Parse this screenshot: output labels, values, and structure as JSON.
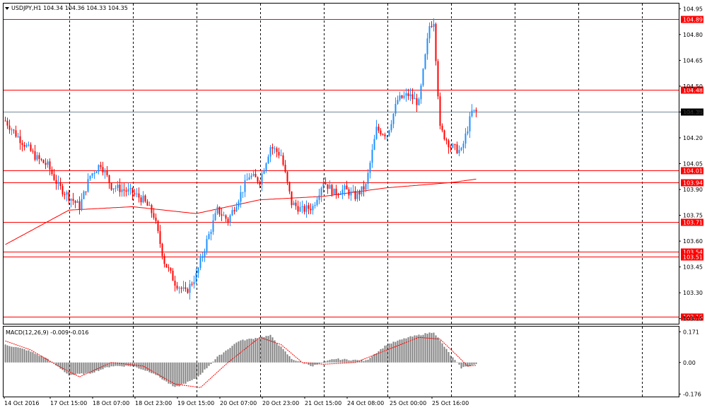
{
  "symbol_header": "USDJPY,H1  104.34 104.36 104.33 104.35",
  "macd_header": "MACD(12,26,9) -0.009 -0.016",
  "colors": {
    "up": "#1e90ff",
    "down": "#ff0000",
    "ma": "#ff0000",
    "level": "#ff0000",
    "current": "#778899",
    "signal": "#ff0000",
    "histogram": "#808080",
    "grid": "#000000"
  },
  "price_axis": {
    "ylim": [
      103.12,
      104.98
    ],
    "ticks": [
      "104.95",
      "104.80",
      "104.65",
      "104.50",
      "104.35",
      "104.20",
      "104.05",
      "103.90",
      "103.75",
      "103.60",
      "103.45",
      "103.30",
      "103.15"
    ]
  },
  "macd_axis": {
    "ylim": [
      -0.19,
      0.2
    ],
    "ticks": [
      "0.171",
      "0.00",
      "-0.176"
    ]
  },
  "time_labels": [
    "14 Oct 2016",
    "17 Oct 15:00",
    "18 Oct 07:00",
    "18 Oct 23:00",
    "19 Oct 15:00",
    "20 Oct 07:00",
    "20 Oct 23:00",
    "21 Oct 15:00",
    "24 Oct 08:00",
    "25 Oct 00:00",
    "25 Oct 16:00"
  ],
  "level_labels": [
    "104.89",
    "104.48",
    "104.01",
    "103.94",
    "103.71",
    "103.54",
    "103.51",
    "103.16"
  ],
  "current_price_label": "104.35",
  "chart_data": [
    {
      "type": "candlestick",
      "title": "USDJPY,H1",
      "x_labels": [
        "14 Oct 2016",
        "17 Oct 15:00",
        "18 Oct 07:00",
        "18 Oct 23:00",
        "19 Oct 15:00",
        "20 Oct 07:00",
        "20 Oct 23:00",
        "21 Oct 15:00",
        "24 Oct 08:00",
        "25 Oct 00:00",
        "25 Oct 16:00"
      ],
      "horizontal_levels": [
        104.89,
        104.48,
        104.01,
        103.94,
        103.71,
        103.54,
        103.51,
        103.16
      ],
      "current_price": 104.35,
      "ohlc_anchors": [
        [
          0,
          104.3
        ],
        [
          5,
          104.22
        ],
        [
          10,
          104.15
        ],
        [
          15,
          104.08
        ],
        [
          20,
          104.04
        ],
        [
          25,
          103.92
        ],
        [
          30,
          103.86
        ],
        [
          35,
          103.8
        ],
        [
          40,
          103.98
        ],
        [
          45,
          104.05
        ],
        [
          50,
          103.92
        ],
        [
          55,
          103.9
        ],
        [
          60,
          103.88
        ],
        [
          65,
          103.84
        ],
        [
          70,
          103.75
        ],
        [
          75,
          103.48
        ],
        [
          80,
          103.36
        ],
        [
          85,
          103.3
        ],
        [
          90,
          103.4
        ],
        [
          95,
          103.6
        ],
        [
          100,
          103.78
        ],
        [
          105,
          103.72
        ],
        [
          110,
          103.85
        ],
        [
          115,
          103.98
        ],
        [
          120,
          103.95
        ],
        [
          125,
          104.15
        ],
        [
          130,
          104.1
        ],
        [
          135,
          103.82
        ],
        [
          140,
          103.78
        ],
        [
          145,
          103.8
        ],
        [
          150,
          103.95
        ],
        [
          155,
          103.88
        ],
        [
          160,
          103.9
        ],
        [
          165,
          103.86
        ],
        [
          170,
          103.92
        ],
        [
          175,
          104.25
        ],
        [
          180,
          104.22
        ],
        [
          185,
          104.42
        ],
        [
          190,
          104.45
        ],
        [
          195,
          104.4
        ],
        [
          200,
          104.85
        ],
        [
          202,
          104.88
        ],
        [
          205,
          104.25
        ],
        [
          210,
          104.15
        ],
        [
          215,
          104.12
        ],
        [
          220,
          104.35
        ],
        [
          222,
          104.35
        ]
      ],
      "moving_average": [
        [
          0,
          103.58
        ],
        [
          30,
          103.78
        ],
        [
          60,
          103.8
        ],
        [
          90,
          103.76
        ],
        [
          120,
          103.84
        ],
        [
          150,
          103.86
        ],
        [
          180,
          103.91
        ],
        [
          210,
          103.94
        ],
        [
          222,
          103.96
        ]
      ],
      "ylim": [
        103.12,
        104.98
      ]
    },
    {
      "type": "macd",
      "title": "MACD(12,26,9) -0.009 -0.016",
      "histogram_anchors": [
        [
          0,
          0.1
        ],
        [
          10,
          0.07
        ],
        [
          20,
          0.02
        ],
        [
          30,
          -0.07
        ],
        [
          40,
          -0.06
        ],
        [
          50,
          -0.02
        ],
        [
          60,
          -0.02
        ],
        [
          70,
          -0.06
        ],
        [
          80,
          -0.14
        ],
        [
          90,
          -0.09
        ],
        [
          100,
          0.03
        ],
        [
          110,
          0.12
        ],
        [
          125,
          0.15
        ],
        [
          135,
          0.02
        ],
        [
          145,
          -0.02
        ],
        [
          155,
          0.02
        ],
        [
          170,
          0.01
        ],
        [
          180,
          0.1
        ],
        [
          190,
          0.14
        ],
        [
          202,
          0.17
        ],
        [
          210,
          0.04
        ],
        [
          215,
          -0.03
        ],
        [
          222,
          -0.009
        ]
      ],
      "signal_anchors": [
        [
          0,
          0.12
        ],
        [
          12,
          0.07
        ],
        [
          25,
          -0.02
        ],
        [
          35,
          -0.08
        ],
        [
          50,
          0.0
        ],
        [
          65,
          -0.02
        ],
        [
          80,
          -0.12
        ],
        [
          92,
          -0.14
        ],
        [
          105,
          0.0
        ],
        [
          120,
          0.14
        ],
        [
          130,
          0.1
        ],
        [
          140,
          0.0
        ],
        [
          150,
          -0.01
        ],
        [
          165,
          0.0
        ],
        [
          180,
          0.07
        ],
        [
          195,
          0.14
        ],
        [
          205,
          0.13
        ],
        [
          212,
          0.05
        ],
        [
          218,
          -0.02
        ],
        [
          222,
          -0.016
        ]
      ],
      "ylim": [
        -0.19,
        0.2
      ]
    }
  ]
}
